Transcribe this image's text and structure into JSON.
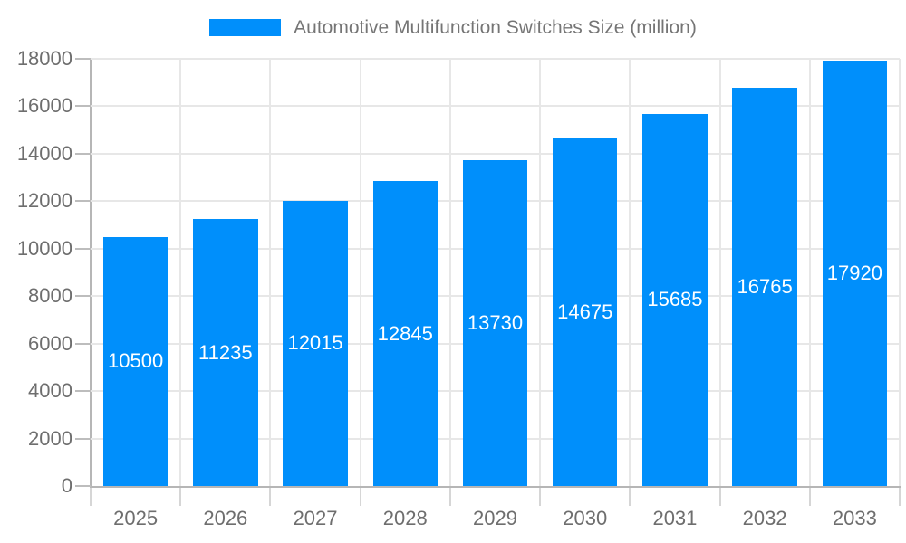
{
  "chart_data": {
    "type": "bar",
    "title": "Automotive Multifunction Switches Size (million)",
    "categories": [
      "2025",
      "2026",
      "2027",
      "2028",
      "2029",
      "2030",
      "2031",
      "2032",
      "2033"
    ],
    "series": [
      {
        "name": "Automotive Multifunction Switches Size (million)",
        "values": [
          10500,
          11235,
          12015,
          12845,
          13730,
          14675,
          15685,
          16765,
          17920
        ]
      }
    ],
    "xlabel": "",
    "ylabel": "",
    "ylim": [
      0,
      18000
    ],
    "yticks": [
      0,
      2000,
      4000,
      6000,
      8000,
      10000,
      12000,
      14000,
      16000,
      18000
    ],
    "grid": "horizontal and vertical gridlines on",
    "legend_position": "top-center",
    "value_labels": "centered inside bars"
  },
  "legend": {
    "label": "Automotive Multifunction Switches Size (million)"
  },
  "colors": {
    "bar": "#008FFB",
    "grid": "#e7e7e7",
    "axis": "#b6b6b6",
    "x_tick": "#d6d6d6",
    "y_tick": "#bdbdbd",
    "axis_label": "#6e6e6e",
    "legend_text": "#757575",
    "value_label": "#ffffff",
    "background": "#ffffff"
  }
}
